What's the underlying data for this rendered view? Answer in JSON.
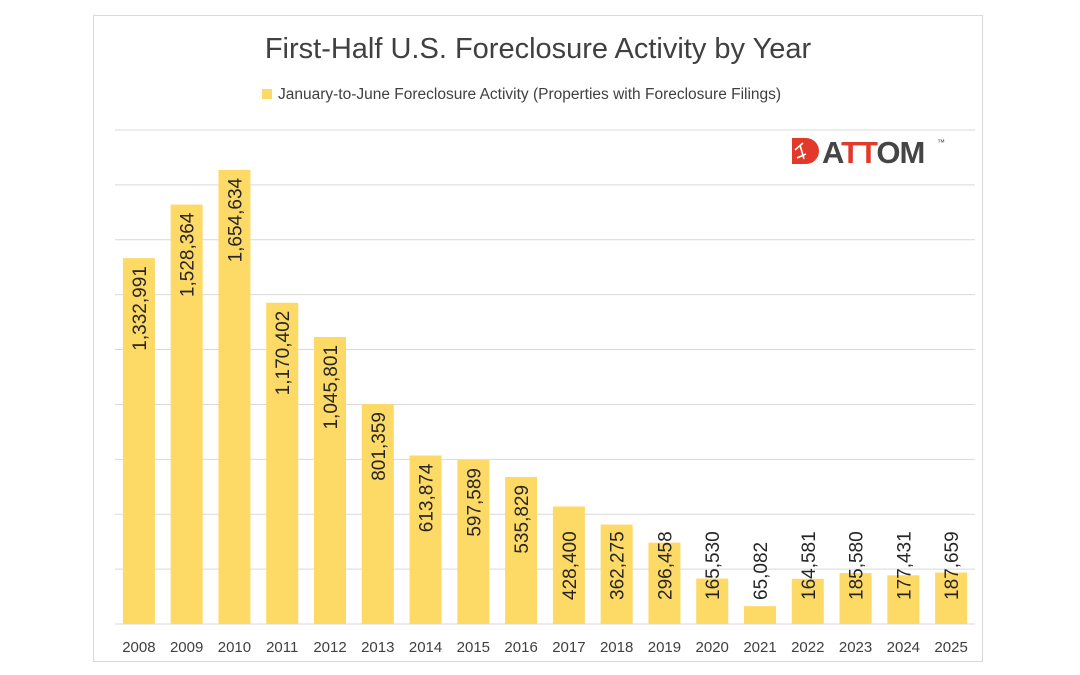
{
  "chart_data": {
    "type": "bar",
    "title": "First-Half U.S. Foreclosure Activity by Year",
    "legend": {
      "label": "January-to-June Foreclosure Activity (Properties with Foreclosure Filings)",
      "position": "top"
    },
    "categories": [
      "2008",
      "2009",
      "2010",
      "2011",
      "2012",
      "2013",
      "2014",
      "2015",
      "2016",
      "2017",
      "2018",
      "2019",
      "2020",
      "2021",
      "2022",
      "2023",
      "2024",
      "2025"
    ],
    "values": [
      1332991,
      1528364,
      1654634,
      1170402,
      1045801,
      801359,
      613874,
      597589,
      535829,
      428400,
      362275,
      296458,
      165530,
      65082,
      164581,
      185580,
      177431,
      187659
    ],
    "data_labels": [
      "1,332,991",
      "1,528,364",
      "1,654,634",
      "1,170,402",
      "1,045,801",
      "801,359",
      "613,874",
      "597,589",
      "535,829",
      "428,400",
      "362,275",
      "296,458",
      "165,530",
      "65,082",
      "164,581",
      "185,580",
      "177,431",
      "187,659"
    ],
    "ylim": [
      0,
      1800000
    ],
    "y_grid_step": 200000,
    "grid": true,
    "y_axis_labels_shown": false,
    "bar_color": "#FDD966",
    "grid_color": "#d9d9d9"
  },
  "logo": {
    "text": "ATTOM",
    "trademark": "™",
    "colors": {
      "red": "#e2392a",
      "dark": "#454545"
    }
  }
}
